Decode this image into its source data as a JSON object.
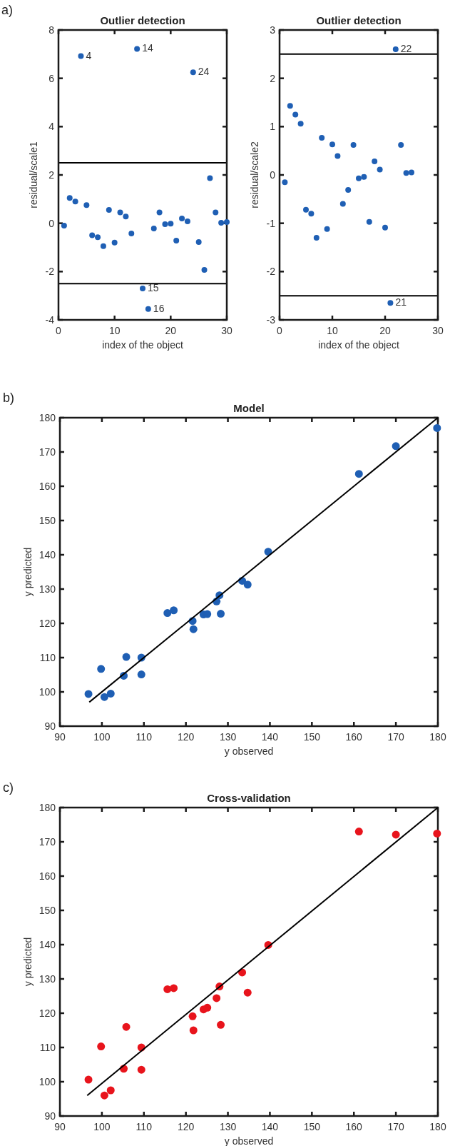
{
  "chart_data": [
    {
      "type": "scatter",
      "title": "Outlier detection",
      "xlabel": "index of the object",
      "ylabel": "residual/scale1",
      "xlim": [
        0,
        30
      ],
      "xticks": [
        0,
        10,
        20,
        30
      ],
      "ylim": [
        -4,
        8
      ],
      "yticks": [
        -4,
        -2,
        0,
        2,
        4,
        6,
        8
      ],
      "grid": false,
      "marker": "circle",
      "series": [
        {
          "color": "#1f5fb4",
          "x": [
            1,
            2,
            3,
            4,
            5,
            6,
            7,
            8,
            9,
            10,
            11,
            12,
            13,
            14,
            15,
            16,
            17,
            18,
            19,
            20,
            21,
            22,
            23,
            24,
            25,
            26,
            27,
            28,
            29,
            30
          ],
          "values": [
            -0.1,
            1.05,
            0.9,
            6.92,
            0.75,
            -0.5,
            -0.58,
            -0.95,
            0.55,
            -0.8,
            0.45,
            0.28,
            -0.42,
            7.22,
            -2.7,
            -3.55,
            -0.22,
            0.45,
            -0.04,
            -0.02,
            -0.72,
            0.2,
            0.08,
            6.25,
            -0.78,
            -1.93,
            1.87,
            0.45,
            0.02,
            0.05
          ]
        }
      ],
      "ref_lines": [
        {
          "axis": "y",
          "value": 2.5,
          "color": "#000000"
        },
        {
          "axis": "y",
          "value": -2.5,
          "color": "#000000"
        }
      ],
      "annotations": [
        "a)",
        {
          "text": "4",
          "x": 4,
          "y": 6.92
        },
        {
          "text": "14",
          "x": 14,
          "y": 7.22
        },
        {
          "text": "24",
          "x": 24,
          "y": 6.25
        },
        {
          "text": "15",
          "x": 15,
          "y": -2.7
        },
        {
          "text": "16",
          "x": 16,
          "y": -3.55
        }
      ]
    },
    {
      "type": "scatter",
      "title": "Outlier detection",
      "xlabel": "index of the object",
      "ylabel": "residual/scale2",
      "xlim": [
        0,
        30
      ],
      "xticks": [
        0,
        10,
        20,
        30
      ],
      "ylim": [
        -3,
        3
      ],
      "yticks": [
        -3,
        -2,
        -1,
        0,
        1,
        2,
        3
      ],
      "grid": false,
      "marker": "circle",
      "series": [
        {
          "color": "#1f5fb4",
          "x": [
            1,
            2,
            3,
            4,
            5,
            6,
            7,
            8,
            9,
            10,
            11,
            12,
            13,
            14,
            15,
            16,
            17,
            18,
            19,
            20,
            21,
            22,
            23,
            24,
            25
          ],
          "values": [
            -0.15,
            1.43,
            1.25,
            1.06,
            -0.72,
            -0.8,
            -1.3,
            0.77,
            -1.12,
            0.63,
            0.39,
            -0.6,
            -0.31,
            0.62,
            -0.07,
            -0.04,
            -0.97,
            0.28,
            0.11,
            -1.09,
            -2.65,
            2.6,
            0.62,
            0.04,
            0.05
          ]
        }
      ],
      "ref_lines": [
        {
          "axis": "y",
          "value": 2.5,
          "color": "#000000"
        },
        {
          "axis": "y",
          "value": -2.5,
          "color": "#000000"
        }
      ],
      "annotations": [
        {
          "text": "22",
          "x": 22,
          "y": 2.6
        },
        {
          "text": "21",
          "x": 21,
          "y": -2.65
        }
      ]
    },
    {
      "type": "scatter",
      "title": "Model",
      "xlabel": "y observed",
      "ylabel": "y predicted",
      "xlim": [
        90,
        180
      ],
      "xticks": [
        90,
        100,
        110,
        120,
        130,
        140,
        150,
        160,
        170,
        180
      ],
      "ylim": [
        90,
        180
      ],
      "yticks": [
        90,
        100,
        110,
        120,
        130,
        140,
        150,
        160,
        170,
        180
      ],
      "grid": false,
      "marker": "circle",
      "series": [
        {
          "color": "#1f5fb4",
          "x": [
            96.8,
            99.8,
            100.6,
            102.1,
            105.2,
            105.8,
            109.4,
            109.4,
            115.6,
            117.1,
            121.6,
            121.8,
            124.2,
            125.1,
            127.3,
            128.0,
            128.3,
            133.4,
            134.7,
            139.6,
            161.2,
            170.0,
            179.8
          ],
          "values": [
            99.4,
            106.7,
            98.5,
            99.5,
            104.7,
            110.2,
            105.1,
            110.0,
            123.0,
            123.8,
            120.7,
            118.3,
            122.6,
            122.7,
            126.4,
            128.2,
            122.8,
            132.4,
            131.3,
            140.9,
            163.6,
            171.7,
            177.0
          ]
        },
        {
          "type": "line",
          "marker": "none",
          "color": "#000000",
          "x": [
            97,
            180
          ],
          "values": [
            97,
            180
          ]
        }
      ],
      "annotations": [
        "b)"
      ]
    },
    {
      "type": "scatter",
      "title": "Cross-validation",
      "xlabel": "y observed",
      "ylabel": "y predicted",
      "xlim": [
        90,
        180
      ],
      "xticks": [
        90,
        100,
        110,
        120,
        130,
        140,
        150,
        160,
        170,
        180
      ],
      "ylim": [
        90,
        180
      ],
      "yticks": [
        90,
        100,
        110,
        120,
        130,
        140,
        150,
        160,
        170,
        180
      ],
      "grid": false,
      "marker": "circle",
      "series": [
        {
          "color": "#e8141c",
          "x": [
            96.8,
            99.8,
            100.6,
            102.1,
            105.2,
            105.8,
            109.4,
            109.4,
            115.6,
            117.1,
            121.6,
            121.8,
            124.2,
            125.1,
            127.3,
            128.0,
            128.3,
            133.4,
            134.7,
            139.6,
            161.2,
            170.0,
            179.8
          ],
          "values": [
            100.6,
            110.3,
            96.0,
            97.5,
            103.8,
            116.0,
            103.5,
            110.0,
            127.0,
            127.3,
            119.1,
            115.0,
            121.1,
            121.6,
            124.4,
            127.8,
            116.6,
            131.9,
            126.0,
            139.9,
            173.0,
            172.1,
            172.4
          ]
        },
        {
          "type": "line",
          "marker": "none",
          "color": "#000000",
          "x": [
            96.5,
            180
          ],
          "values": [
            96,
            180
          ]
        }
      ],
      "annotations": [
        "c)"
      ]
    }
  ]
}
